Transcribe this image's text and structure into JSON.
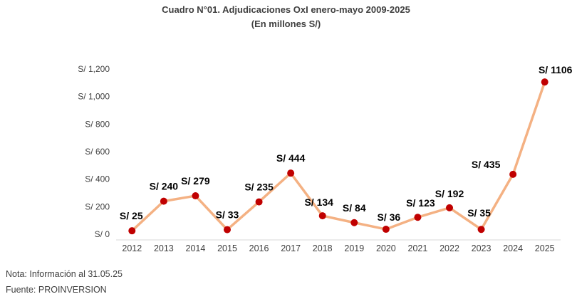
{
  "chart_data": {
    "type": "line",
    "title": "Cuadro N°01. Adjudicaciones OxI enero-mayo 2009-2025",
    "subtitle": "(En millones S/)",
    "x": [
      "2012",
      "2013",
      "2014",
      "2015",
      "2016",
      "2017",
      "2018",
      "2019",
      "2020",
      "2021",
      "2022",
      "2023",
      "2024",
      "2025"
    ],
    "series": [
      {
        "values": [
          25,
          240,
          279,
          33,
          235,
          444,
          134,
          84,
          36,
          123,
          192,
          35,
          435,
          1106
        ]
      }
    ],
    "data_labels": [
      "S/ 25",
      "S/ 240",
      "S/ 279",
      "S/ 33",
      "S/ 235",
      "S/ 444",
      "S/ 134",
      "S/ 84",
      "S/ 36",
      "S/ 123",
      "S/ 192",
      "S/ 35",
      "S/ 435",
      "S/ 1106"
    ],
    "yticks": [
      0,
      200,
      400,
      600,
      800,
      1000,
      1200
    ],
    "ytick_labels": [
      "S/ 0",
      "S/ 200",
      "S/ 400",
      "S/ 600",
      "S/ 800",
      "S/ 1,000",
      "S/ 1,200"
    ],
    "ylim": [
      0,
      1200
    ],
    "grid": false,
    "legend": "none",
    "colors": {
      "line": "#F4B183",
      "marker": "#C00000",
      "text": "#404040",
      "label": "#000000"
    }
  },
  "notes": {
    "nota": "Nota: Información al 31.05.25",
    "fuente": "Fuente: PROINVERSION"
  }
}
